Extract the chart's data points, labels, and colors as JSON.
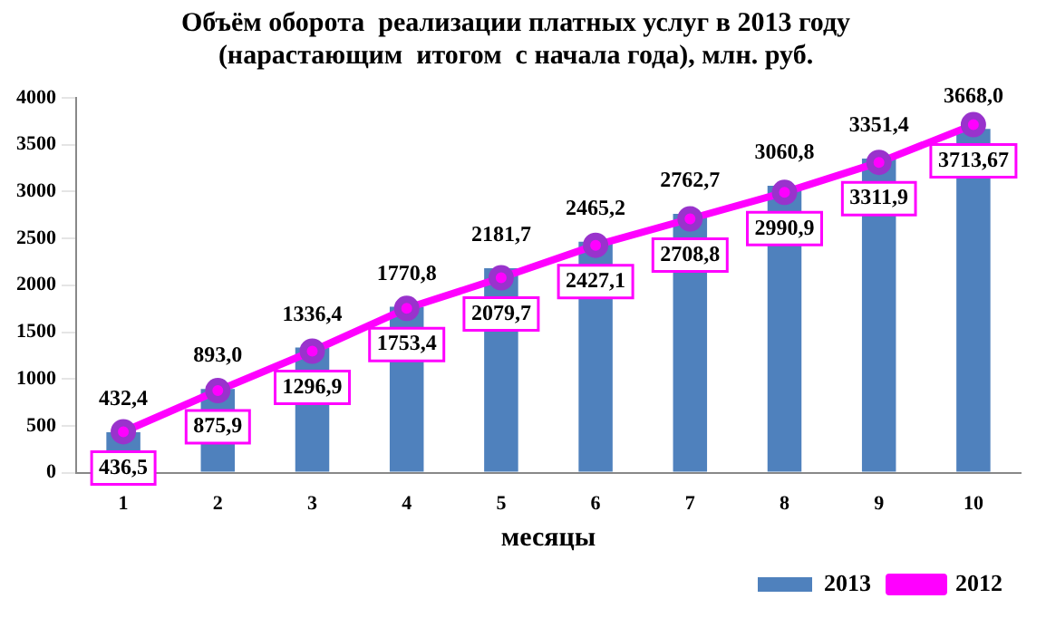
{
  "chart_data": {
    "type": "bar",
    "title": "Объём оборота  реализации платных услуг в 2013 году\n(нарастающим  итогом  с начала года), млн. руб.",
    "xlabel": "месяцы",
    "categories": [
      "1",
      "2",
      "3",
      "4",
      "5",
      "6",
      "7",
      "8",
      "9",
      "10"
    ],
    "series": [
      {
        "name": "2013",
        "color": "#4f81bd",
        "values": [
          432.4,
          893.0,
          1336.4,
          1770.8,
          2181.7,
          2465.2,
          2762.7,
          3060.8,
          3351.4,
          3668.0
        ],
        "value_labels": [
          "432,4",
          "893,0",
          "1336,4",
          "1770,8",
          "2181,7",
          "2465,2",
          "2762,7",
          "3060,8",
          "3351,4",
          "3668,0"
        ]
      },
      {
        "name": "2012",
        "type": "line",
        "color": "#ff00ff",
        "values": [
          436.5,
          875.9,
          1296.9,
          1753.4,
          2079.7,
          2427.1,
          2708.8,
          2990.9,
          3311.9,
          3713.67
        ],
        "value_labels": [
          "436,5",
          "875,9",
          "1296,9",
          "1753,4",
          "2079,7",
          "2427,1",
          "2708,8",
          "2990,9",
          "3311,9",
          "3713,67"
        ]
      }
    ],
    "ylim": [
      0,
      4000
    ],
    "yticks": [
      0,
      500,
      1000,
      1500,
      2000,
      2500,
      3000,
      3500,
      4000
    ],
    "grid": false,
    "legend": "bottom right",
    "marker": "circle",
    "line_style": "solid"
  }
}
